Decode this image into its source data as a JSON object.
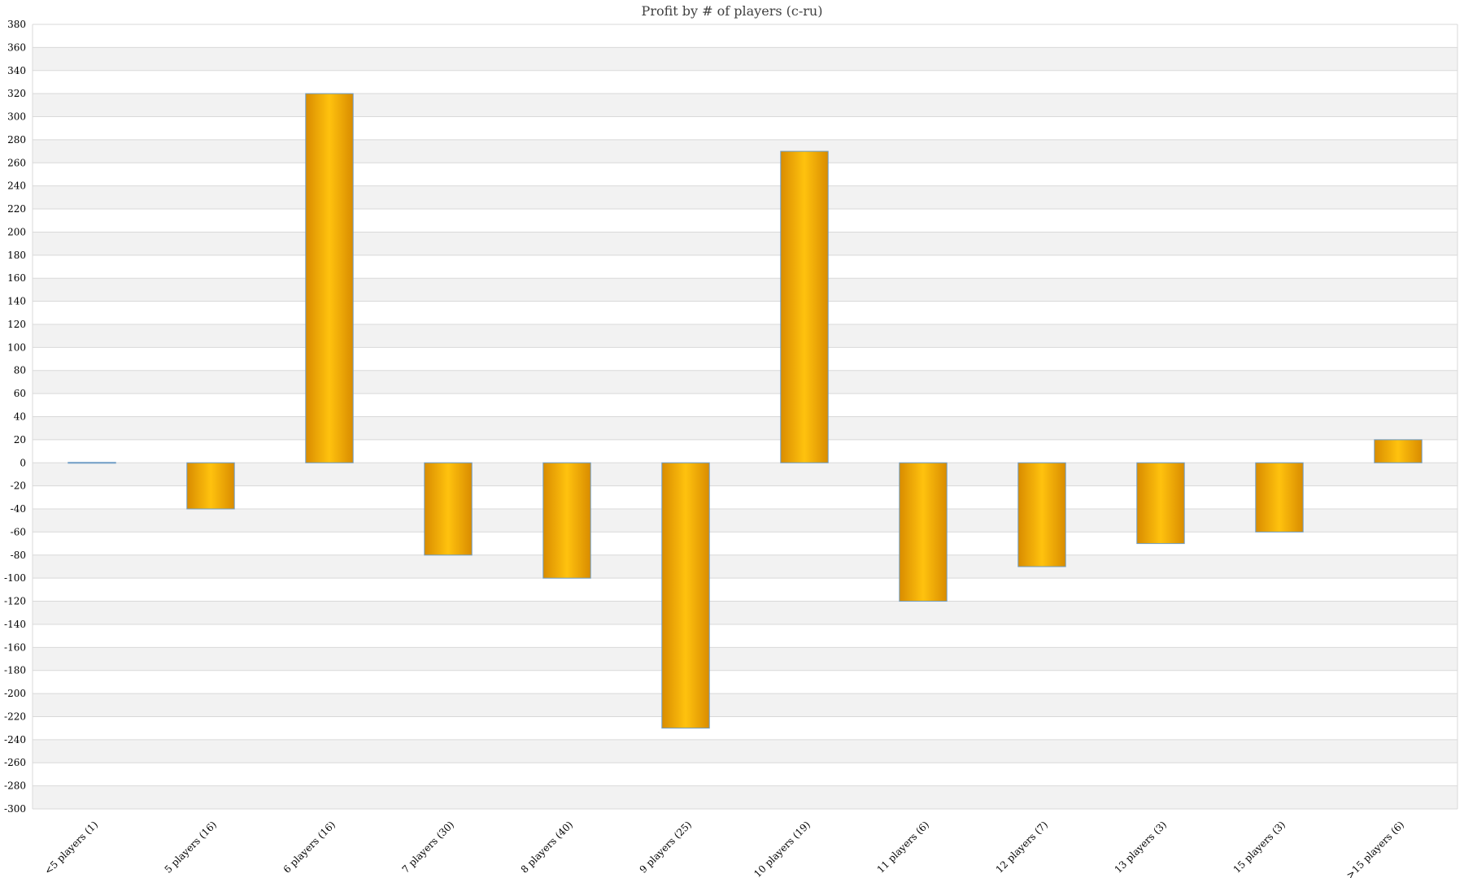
{
  "chart_data": {
    "type": "bar",
    "title": "Profit by # of players  (c-ru)",
    "xlabel": "",
    "ylabel": "",
    "categories": [
      "<5 players (1)",
      "5 players (16)",
      "6 players (16)",
      "7 players (30)",
      "8 players (40)",
      "9 players (25)",
      "10 players (19)",
      "11 players (6)",
      "12 players (7)",
      "13 players (3)",
      "15 players (3)",
      ">15 players (6)"
    ],
    "series": [
      {
        "values": [
          0,
          -40,
          320,
          -80,
          -100,
          -230,
          270,
          -120,
          -90,
          -70,
          -60,
          20
        ]
      }
    ],
    "ylim": [
      -300,
      380
    ],
    "ytick_step": 20,
    "grid": "horizontal, alternating bands",
    "legend": "none",
    "colors": {
      "bar": "#f2a900",
      "bar_highlight": "#ffc20e",
      "bar_shade": "#d98c00",
      "bar_outline": "#6e9cc4",
      "band": "#f2f2f2",
      "gridline": "#d9d9d9"
    }
  }
}
